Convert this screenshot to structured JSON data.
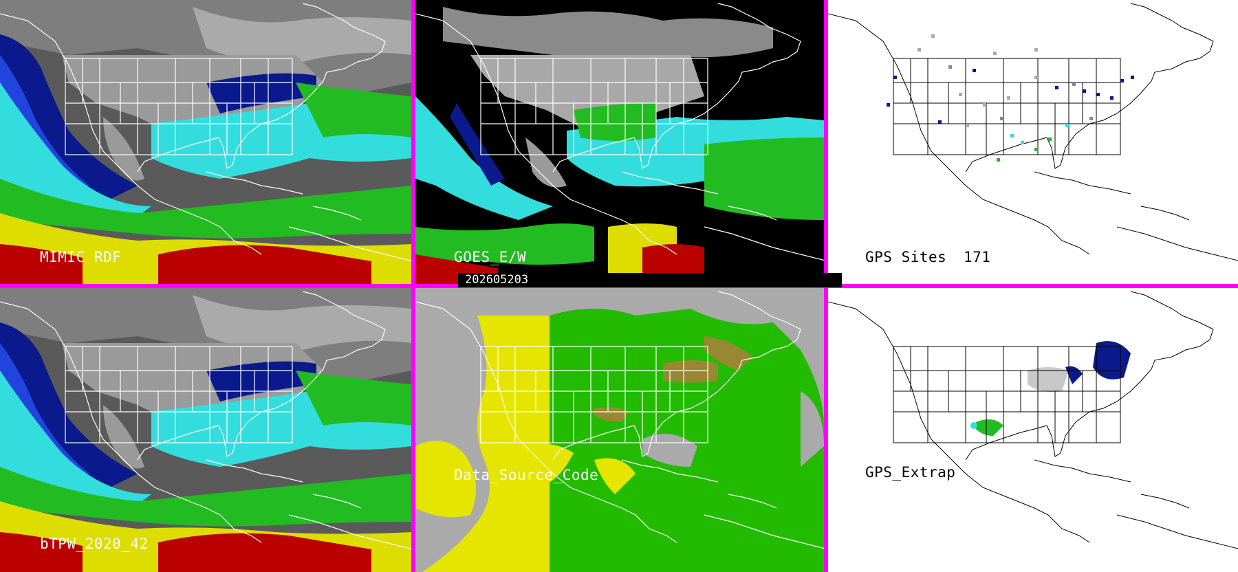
{
  "panels": {
    "mimic_rdf": {
      "label": "MIMIC RDF"
    },
    "goes_ew": {
      "label": "GOES_E/W"
    },
    "gps_sites": {
      "label": "GPS Sites",
      "count": "171"
    },
    "btpw": {
      "label": "bTPW_2020_42"
    },
    "data_source": {
      "label": "Data_Source_Code"
    },
    "gps_extrap": {
      "label": "GPS_Extrap"
    }
  },
  "timestamp": "202605203",
  "colors": {
    "divider": "#ff00ff",
    "tpw_gray": "#8c8c8c",
    "tpw_navy": "#0a1a8c",
    "tpw_blue": "#2244dd",
    "tpw_cyan": "#33dddd",
    "tpw_green": "#22bb22",
    "tpw_yellow": "#dddd00",
    "tpw_red": "#bb0000",
    "source_gray": "#aaaaaa",
    "source_yellow": "#e5e500",
    "source_green": "#22bb00",
    "source_olive": "#998833"
  }
}
